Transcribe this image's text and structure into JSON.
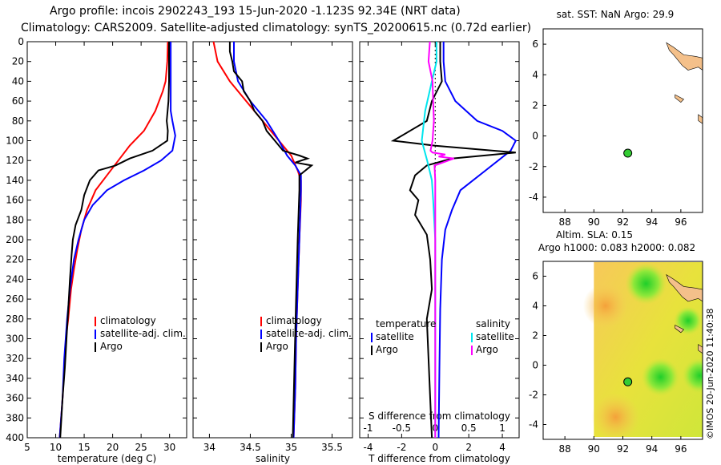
{
  "header": {
    "title_line1": "Argo profile: incois 2902243_193 15-Jun-2020 -1.123S 92.34E (NRT data)",
    "title_line2": "Climatology: CARS2009. Satellite-adjusted climatology: synTS_20200615.nc (0.72d earlier)"
  },
  "stamp": "©IMOS 20-Jun-2020 11:40:38",
  "colors": {
    "climatology": "#ff0000",
    "satellite": "#0000ff",
    "argo": "#000000",
    "s_satellite": "#00e5ee",
    "s_argo": "#ff00ff",
    "land": "#f4c08a",
    "argo_dot": "#33cc33"
  },
  "chart_data": [
    {
      "type": "line",
      "title": "",
      "xlabel": "temperature (deg C)",
      "ylabel": "",
      "xlim": [
        5,
        33
      ],
      "ylim": [
        400,
        0
      ],
      "xticks": [
        5,
        10,
        15,
        20,
        25,
        30
      ],
      "yticks": [
        0,
        20,
        40,
        60,
        80,
        100,
        120,
        140,
        160,
        180,
        200,
        220,
        240,
        260,
        280,
        300,
        320,
        340,
        360,
        380,
        400
      ],
      "legend": [
        "climatology",
        "satellite-adj. clim.",
        "Argo"
      ],
      "series": [
        {
          "name": "climatology",
          "color": "#ff0000",
          "x": [
            29.7,
            29.6,
            29.3,
            28.8,
            27.5,
            25.5,
            23,
            21,
            19,
            17,
            15.5,
            14.5,
            13.8,
            13.2,
            12.7,
            12.2,
            11.8,
            11.5,
            11.2,
            10.7
          ],
          "y": [
            0,
            20,
            40,
            50,
            70,
            90,
            105,
            120,
            135,
            150,
            170,
            190,
            210,
            230,
            250,
            280,
            300,
            330,
            360,
            400
          ]
        },
        {
          "name": "satellite-adj. clim.",
          "color": "#0000ff",
          "x": [
            30.2,
            30.2,
            30.2,
            30.2,
            30.2,
            30.5,
            31,
            30.5,
            28.5,
            25.5,
            22,
            19,
            16.5,
            15,
            14,
            13.2,
            12.5,
            12,
            11.5,
            11.2,
            10.7
          ],
          "y": [
            0,
            20,
            40,
            60,
            70,
            80,
            95,
            110,
            120,
            130,
            140,
            150,
            165,
            180,
            200,
            220,
            250,
            280,
            320,
            360,
            400
          ]
        },
        {
          "name": "Argo",
          "color": "#000000",
          "x": [
            29.9,
            29.9,
            29.9,
            29.8,
            29.5,
            29.7,
            29.6,
            27,
            23,
            20.5,
            17.5,
            16,
            15,
            14.5,
            13.5,
            13,
            12.8,
            12.5,
            12.2,
            11.9,
            11.6,
            11.2,
            10.8
          ],
          "y": [
            0,
            20,
            40,
            60,
            80,
            90,
            100,
            110,
            118,
            125,
            130,
            140,
            155,
            170,
            185,
            200,
            215,
            240,
            270,
            300,
            330,
            360,
            400
          ]
        }
      ]
    },
    {
      "type": "line",
      "title": "",
      "xlabel": "salinity",
      "ylabel": "",
      "xlim": [
        33.8,
        35.75
      ],
      "ylim": [
        400,
        0
      ],
      "xticks": [
        34,
        34.5,
        35,
        35.5
      ],
      "legend": [
        "climatology",
        "satellite-adj. clim.",
        "Argo"
      ],
      "series": [
        {
          "name": "climatology",
          "color": "#ff0000",
          "x": [
            34.05,
            34.1,
            34.25,
            34.45,
            34.65,
            34.85,
            35,
            35.08,
            35.12,
            35.12,
            35.1,
            35.08,
            35.06,
            35.05,
            35.03
          ],
          "y": [
            0,
            20,
            40,
            60,
            80,
            100,
            115,
            130,
            140,
            160,
            200,
            250,
            300,
            350,
            400
          ]
        },
        {
          "name": "satellite-adj. clim.",
          "color": "#0000ff",
          "x": [
            34.3,
            34.3,
            34.35,
            34.5,
            34.7,
            34.85,
            34.95,
            35.05,
            35.12,
            35.12,
            35.1,
            35.08,
            35.06,
            35.05,
            35.03
          ],
          "y": [
            0,
            20,
            40,
            60,
            80,
            100,
            115,
            125,
            135,
            150,
            200,
            250,
            300,
            350,
            400
          ]
        },
        {
          "name": "Argo",
          "color": "#000000",
          "x": [
            34.25,
            34.25,
            34.28,
            34.3,
            34.4,
            34.42,
            34.5,
            34.55,
            34.65,
            34.7,
            34.8,
            34.9,
            35.1,
            35.2,
            35.05,
            35.25,
            35.1,
            35.1,
            35.08,
            35.06,
            35.04,
            35.02
          ],
          "y": [
            0,
            10,
            20,
            30,
            40,
            50,
            60,
            70,
            80,
            90,
            100,
            110,
            115,
            118,
            122,
            125,
            135,
            150,
            200,
            260,
            330,
            400
          ]
        }
      ]
    },
    {
      "type": "line",
      "title": "",
      "xlabel": "T difference from climatology",
      "ylabel": "",
      "xlim": [
        -4.5,
        5
      ],
      "ylim": [
        400,
        0
      ],
      "xticks": [
        -4,
        -2,
        0,
        2,
        4
      ],
      "top_axis": {
        "label": "S difference from climatology",
        "xlim": [
          -1.125,
          1.25
        ],
        "xticks": [
          -1,
          -0.5,
          0,
          0.5,
          1
        ],
        "ticklabels": [
          "-1",
          "-0.5",
          "0",
          "0.5",
          "1"
        ]
      },
      "legend_temperature": [
        "temperature",
        "satellite",
        "Argo"
      ],
      "legend_salinity": [
        "salinity",
        "satellite",
        "Argo"
      ],
      "series": [
        {
          "name": "temperature satellite",
          "color": "#0000ff",
          "axis": "T",
          "x": [
            0.5,
            0.5,
            0.6,
            1.2,
            2.5,
            4,
            4.8,
            4.5,
            3,
            1.5,
            1,
            0.6,
            0.4,
            0.3,
            0.25,
            0.2
          ],
          "y": [
            0,
            20,
            40,
            60,
            80,
            90,
            100,
            110,
            130,
            150,
            170,
            190,
            220,
            270,
            330,
            400
          ]
        },
        {
          "name": "temperature Argo",
          "color": "#000000",
          "axis": "T",
          "x": [
            0.3,
            0.3,
            0.4,
            -0.2,
            -0.5,
            -1.5,
            -2.5,
            0,
            4.8,
            1,
            -0.5,
            -1.2,
            -1.5,
            -1,
            -1.2,
            -0.5,
            -0.3,
            -0.2,
            -0.5,
            -0.4,
            -0.3,
            -0.2
          ],
          "y": [
            0,
            20,
            40,
            60,
            80,
            90,
            100,
            105,
            112,
            118,
            125,
            135,
            150,
            160,
            175,
            195,
            220,
            250,
            280,
            320,
            360,
            400
          ]
        },
        {
          "name": "salinity satellite",
          "color": "#00e5ee",
          "axis": "S",
          "x": [
            0.02,
            0.02,
            -0.05,
            -0.15,
            -0.2,
            -0.12,
            -0.05,
            -0.03,
            0,
            0,
            0
          ],
          "y": [
            0,
            20,
            40,
            70,
            100,
            120,
            140,
            160,
            200,
            300,
            400
          ]
        },
        {
          "name": "salinity Argo",
          "color": "#ff00ff",
          "axis": "S",
          "x": [
            -0.08,
            -0.1,
            -0.04,
            -0.03,
            -0.02,
            -0.04,
            -0.07,
            -0.04,
            0.15,
            0.05,
            0.28,
            -0.01,
            0,
            0,
            0,
            0
          ],
          "y": [
            0,
            20,
            40,
            60,
            80,
            100,
            110,
            112,
            114,
            116,
            118,
            125,
            140,
            200,
            300,
            400
          ]
        }
      ]
    },
    {
      "type": "scatter",
      "title": "sat. SST: NaN Argo: 29.9",
      "xlabel": "",
      "ylabel": "",
      "xlim": [
        86.5,
        97.5
      ],
      "ylim": [
        -5,
        7
      ],
      "xticks": [
        88,
        90,
        92,
        94,
        96
      ],
      "yticks": [
        -4,
        -2,
        0,
        2,
        4,
        6
      ],
      "points": [
        {
          "name": "Argo",
          "x": 92.34,
          "y": -1.123
        }
      ]
    },
    {
      "type": "heatmap",
      "title": "Altim. SLA: 0.15",
      "subtitle": "Argo h1000: 0.083 h2000: 0.082",
      "xlabel": "",
      "ylabel": "",
      "xlim": [
        86.5,
        97.5
      ],
      "ylim": [
        -5,
        7
      ],
      "xticks": [
        88,
        90,
        92,
        94,
        96
      ],
      "yticks": [
        -4,
        -2,
        0,
        2,
        4,
        6
      ],
      "points": [
        {
          "name": "Argo",
          "x": 92.34,
          "y": -1.123
        }
      ]
    }
  ]
}
